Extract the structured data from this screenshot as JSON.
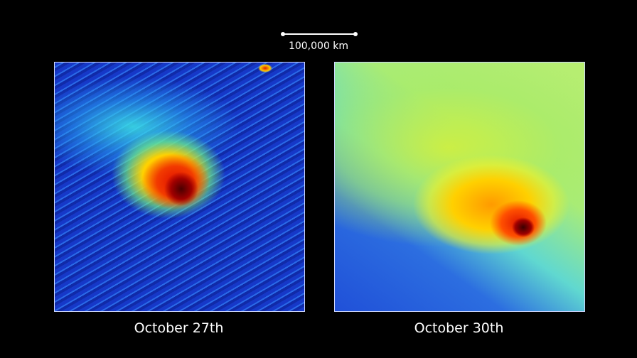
{
  "scale_bar": {
    "label": "100,000 km"
  },
  "panels": [
    {
      "caption": "October 27th"
    },
    {
      "caption": "October 30th"
    }
  ]
}
